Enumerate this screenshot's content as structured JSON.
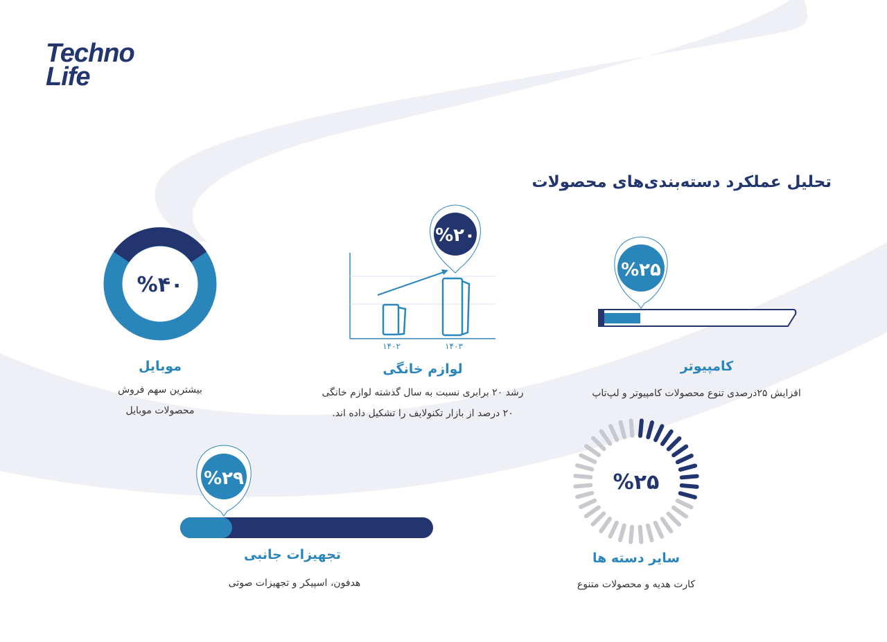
{
  "logo": {
    "line1": "Techno",
    "line2": "Life"
  },
  "title": "تحلیل عملکرد دسته‌بندی‌های محصولات",
  "colors": {
    "navy": "#22356f",
    "blue": "#2a86ba",
    "gray": "#c8c9ce",
    "background_swoosh": "#eff0f5"
  },
  "mobile": {
    "percent": "%۴۰",
    "value": 40,
    "heading": "موبایل",
    "line1": "بیشترین سهم فروش",
    "line2": "محصولات موبایل"
  },
  "home_appliances": {
    "percent": "%۲۰",
    "value": 20,
    "heading": "لوازم خانگی",
    "line1": "رشد ۲۰ برابری نسبت به سال گذشته لوازم خانگی",
    "line2": "۲۰ درصد از بازار تکنولایف را تشکیل داده اند.",
    "years": [
      "۱۴۰۲",
      "۱۴۰۳"
    ]
  },
  "computer": {
    "percent": "%۲۵",
    "value": 25,
    "heading": "کامپیوتر",
    "line1": "افزایش ۲۵درصدی تنوع محصولات کامپیوتر و لپ‌تاپ"
  },
  "accessories": {
    "percent": "%۲۹",
    "value": 29,
    "heading": "تجهیزات جانبی",
    "line1": "هدفون، اسپیکر و تجهیزات صوتی"
  },
  "other": {
    "percent": "%۲۵",
    "value": 25,
    "heading": "سایر دسته ها",
    "line1": "کارت هدیه و محصولات متنوع"
  }
}
